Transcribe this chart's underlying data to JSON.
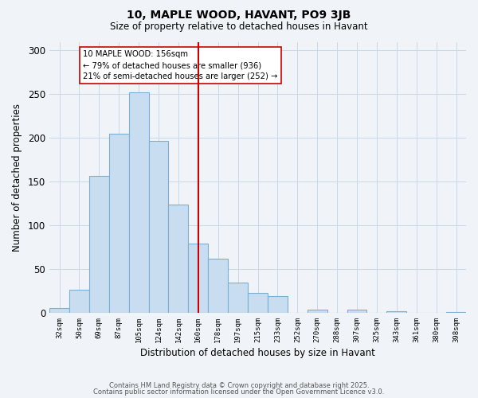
{
  "title": "10, MAPLE WOOD, HAVANT, PO9 3JB",
  "subtitle": "Size of property relative to detached houses in Havant",
  "xlabel": "Distribution of detached houses by size in Havant",
  "ylabel": "Number of detached properties",
  "bin_labels": [
    "32sqm",
    "50sqm",
    "69sqm",
    "87sqm",
    "105sqm",
    "124sqm",
    "142sqm",
    "160sqm",
    "178sqm",
    "197sqm",
    "215sqm",
    "233sqm",
    "252sqm",
    "270sqm",
    "288sqm",
    "307sqm",
    "325sqm",
    "343sqm",
    "361sqm",
    "380sqm",
    "398sqm"
  ],
  "bar_values": [
    5,
    26,
    157,
    205,
    252,
    197,
    124,
    79,
    62,
    35,
    23,
    19,
    0,
    4,
    0,
    4,
    0,
    2,
    0,
    0,
    1
  ],
  "bar_color": "#c8ddf0",
  "bar_edge_color": "#7ab0d4",
  "vline_x": 7,
  "vline_color": "#cc0000",
  "annotation_title": "10 MAPLE WOOD: 156sqm",
  "annotation_line1": "← 79% of detached houses are smaller (936)",
  "annotation_line2": "21% of semi-detached houses are larger (252) →",
  "annotation_box_color": "#ffffff",
  "annotation_box_edge": "#cc0000",
  "ylim": [
    0,
    310
  ],
  "yticks": [
    0,
    50,
    100,
    150,
    200,
    250,
    300
  ],
  "footer1": "Contains HM Land Registry data © Crown copyright and database right 2025.",
  "footer2": "Contains public sector information licensed under the Open Government Licence v3.0.",
  "background_color": "#f0f4f8",
  "grid_color": "#c8d8e8"
}
